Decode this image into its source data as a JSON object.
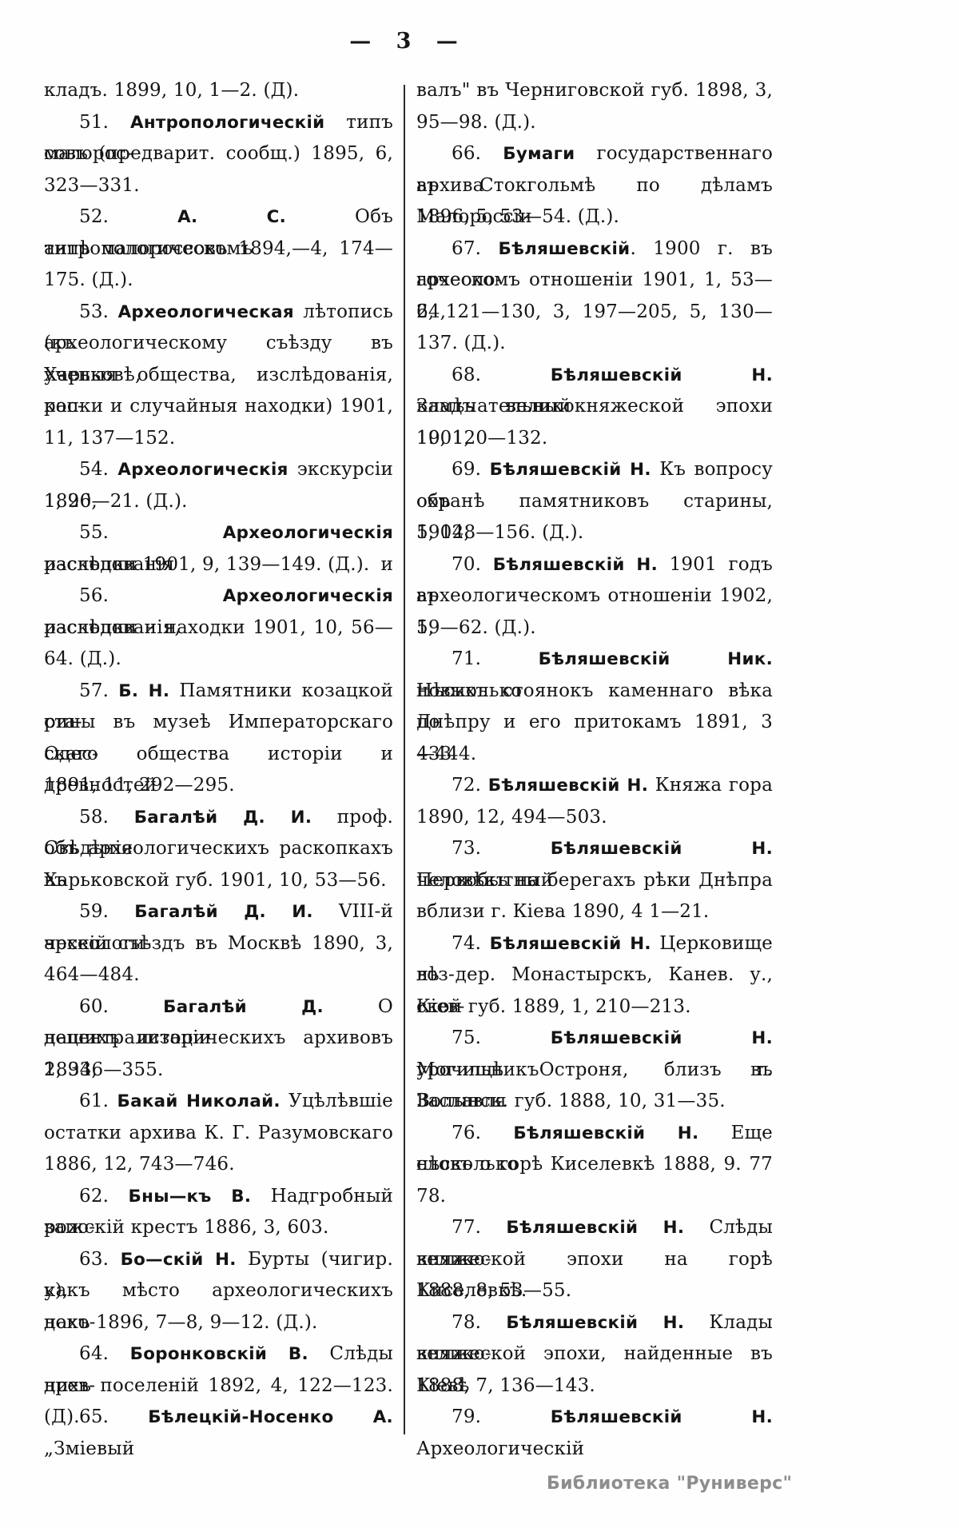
{
  "header": {
    "text": "— 3 —"
  },
  "watermark": {
    "text": "Библиотека \"Руниверс\""
  },
  "columns": {
    "left": [
      {
        "e": 1,
        "p": [
          {
            "t": "кладъ. 1899, 10, 1—2. (Д)."
          }
        ]
      },
      {
        "i": 1,
        "p": [
          {
            "t": "51. "
          },
          {
            "t": "Антропологическій",
            "b": 1
          },
          {
            "t": " типъ малорос-"
          }
        ]
      },
      {
        "p": [
          {
            "t": "совъ (предварит. сообщ.) 1895, 6,"
          }
        ]
      },
      {
        "e": 1,
        "p": [
          {
            "t": "323—331."
          }
        ]
      },
      {
        "i": 1,
        "p": [
          {
            "t": "52. "
          },
          {
            "t": "А. С.",
            "b": 1
          },
          {
            "t": " Объ антропологическомъ"
          }
        ]
      },
      {
        "p": [
          {
            "t": "типѣ малороссовъ 1894,—4, 174—"
          }
        ]
      },
      {
        "e": 1,
        "p": [
          {
            "t": "175. (Д.)."
          }
        ]
      },
      {
        "i": 1,
        "p": [
          {
            "t": "53. "
          },
          {
            "t": "Археологическая",
            "b": 1
          },
          {
            "t": " лѣтопись (къ"
          }
        ]
      },
      {
        "p": [
          {
            "t": "археологическому съѣзду въ Харьковѣ,"
          }
        ]
      },
      {
        "p": [
          {
            "t": "ученыя общества, изслѣдованія, рас-"
          }
        ]
      },
      {
        "p": [
          {
            "t": "копки и случайныя находки) 1901,"
          }
        ]
      },
      {
        "e": 1,
        "p": [
          {
            "t": "11, 137—152."
          }
        ]
      },
      {
        "i": 1,
        "p": [
          {
            "t": "54. "
          },
          {
            "t": "Археологическія",
            "b": 1
          },
          {
            "t": " экскурсіи 1896,"
          }
        ]
      },
      {
        "e": 1,
        "p": [
          {
            "t": "1, 20—21. (Д.)."
          }
        ]
      },
      {
        "i": 1,
        "p": [
          {
            "t": "55. "
          },
          {
            "t": "Археологическія",
            "b": 1
          },
          {
            "t": " изслѣдованія и"
          }
        ]
      },
      {
        "e": 1,
        "p": [
          {
            "t": "раскопки 1901, 9, 139—149. (Д.)."
          }
        ]
      },
      {
        "i": 1,
        "p": [
          {
            "t": "56. "
          },
          {
            "t": "Археологическія",
            "b": 1
          },
          {
            "t": " изслѣдованія,"
          }
        ]
      },
      {
        "p": [
          {
            "t": "раскопки и находки 1901, 10, 56—"
          }
        ]
      },
      {
        "e": 1,
        "p": [
          {
            "t": "64. (Д.)."
          }
        ]
      },
      {
        "i": 1,
        "p": [
          {
            "t": "57. "
          },
          {
            "t": "Б. Н.",
            "b": 1
          },
          {
            "t": " Памятники козацкой ста-"
          }
        ]
      },
      {
        "p": [
          {
            "t": "рины въ музеѣ Императорскаго Одес-"
          }
        ]
      },
      {
        "p": [
          {
            "t": "скаго общества исторіи и древностей"
          }
        ]
      },
      {
        "e": 1,
        "p": [
          {
            "t": "1891, 11, 292—295."
          }
        ]
      },
      {
        "i": 1,
        "p": [
          {
            "t": "58. "
          },
          {
            "t": "Багалѣй Д. И.",
            "b": 1
          },
          {
            "t": " проф. Свѣдѣнія"
          }
        ]
      },
      {
        "p": [
          {
            "t": "объ археологическихъ раскопкахъ въ"
          }
        ]
      },
      {
        "e": 1,
        "p": [
          {
            "t": "Харьковской губ. 1901, 10, 53—56."
          }
        ]
      },
      {
        "i": 1,
        "p": [
          {
            "t": "59. "
          },
          {
            "t": "Багалѣй Д. И.",
            "b": 1
          },
          {
            "t": " VIII-й археологи-"
          }
        ]
      },
      {
        "p": [
          {
            "t": "ческій съѣздъ въ Москвѣ 1890, 3,"
          }
        ]
      },
      {
        "e": 1,
        "p": [
          {
            "t": "464—484."
          }
        ]
      },
      {
        "i": 1,
        "p": [
          {
            "t": "60. "
          },
          {
            "t": "Багалѣй Д.",
            "b": 1
          },
          {
            "t": " О децентрализаціи"
          }
        ]
      },
      {
        "p": [
          {
            "t": "нашихъ историческихъ архивовъ 1893,"
          }
        ]
      },
      {
        "e": 1,
        "p": [
          {
            "t": "2, 346—355."
          }
        ]
      },
      {
        "i": 1,
        "p": [
          {
            "t": "61. "
          },
          {
            "t": "Бакай Николай.",
            "b": 1
          },
          {
            "t": " Уцѣлѣвшіе"
          }
        ]
      },
      {
        "p": [
          {
            "t": "остатки архива К. Г. Разумовскаго"
          }
        ]
      },
      {
        "e": 1,
        "p": [
          {
            "t": "1886, 12, 743—746."
          }
        ]
      },
      {
        "i": 1,
        "p": [
          {
            "t": "62. "
          },
          {
            "t": "Бны—къ В.",
            "b": 1
          },
          {
            "t": " Надгробный запо-"
          }
        ]
      },
      {
        "e": 1,
        "p": [
          {
            "t": "рожскій крестъ 1886, 3, 603."
          }
        ]
      },
      {
        "i": 1,
        "p": [
          {
            "t": "63. "
          },
          {
            "t": "Бо—скій Н.",
            "b": 1
          },
          {
            "t": " Бурты (чигир. у),"
          }
        ]
      },
      {
        "p": [
          {
            "t": "какъ мѣсто археологическихъ нахо-"
          }
        ]
      },
      {
        "e": 1,
        "p": [
          {
            "t": "докъ 1896, 7—8, 9—12. (Д.)."
          }
        ]
      },
      {
        "i": 1,
        "p": [
          {
            "t": "64. "
          },
          {
            "t": "Боронковскій В.",
            "b": 1
          },
          {
            "t": " Слѣды древ-"
          }
        ]
      },
      {
        "e": 1,
        "p": [
          {
            "t": "нихъ поселеній 1892, 4, 122—123. (Д)."
          }
        ]
      },
      {
        "i": 1,
        "p": [
          {
            "t": "65. "
          },
          {
            "t": "Бѣлецкій-Носенко А.",
            "b": 1
          },
          {
            "t": " „Зміевый"
          }
        ]
      }
    ],
    "right": [
      {
        "p": [
          {
            "t": "валъ\" въ Черниговской губ. 1898, 3,"
          }
        ]
      },
      {
        "e": 1,
        "p": [
          {
            "t": "95—98. (Д.)."
          }
        ]
      },
      {
        "i": 1,
        "p": [
          {
            "t": "66. "
          },
          {
            "t": "Бумаги",
            "b": 1
          },
          {
            "t": " государственнаго архива"
          }
        ]
      },
      {
        "p": [
          {
            "t": "въ Стокгольмѣ по дѣламъ Малороссіи"
          }
        ]
      },
      {
        "e": 1,
        "p": [
          {
            "t": "1896, 5, 53—54. (Д.)."
          }
        ]
      },
      {
        "i": 1,
        "p": [
          {
            "t": "67. "
          },
          {
            "t": "Бѣляшевскій",
            "b": 1
          },
          {
            "t": ". 1900 г. въ археоло-"
          }
        ]
      },
      {
        "p": [
          {
            "t": "гоческомъ отношеніи 1901, 1, 53—64,"
          }
        ]
      },
      {
        "p": [
          {
            "t": "2, 121—130, 3, 197—205, 5, 130—"
          }
        ]
      },
      {
        "e": 1,
        "p": [
          {
            "t": "137. (Д.)."
          }
        ]
      },
      {
        "i": 1,
        "p": [
          {
            "t": "68. "
          },
          {
            "t": "Бѣляшевскій Н.",
            "b": 1
          },
          {
            "t": " Замѣчательный"
          }
        ]
      },
      {
        "p": [
          {
            "t": "кладъ великокняжеской эпохи 1901,"
          }
        ]
      },
      {
        "e": 1,
        "p": [
          {
            "t": "10, 120—132."
          }
        ]
      },
      {
        "i": 1,
        "p": [
          {
            "t": "69. "
          },
          {
            "t": "Бѣляшевскій Н.",
            "b": 1
          },
          {
            "t": " Къ вопросу объ"
          }
        ]
      },
      {
        "p": [
          {
            "t": "охранѣ памятниковъ старины, 1902,"
          }
        ]
      },
      {
        "e": 1,
        "p": [
          {
            "t": "5, 148—156. (Д.)."
          }
        ]
      },
      {
        "i": 1,
        "p": [
          {
            "t": "70. "
          },
          {
            "t": "Бѣляшевскій Н.",
            "b": 1
          },
          {
            "t": " 1901 годъ въ"
          }
        ]
      },
      {
        "p": [
          {
            "t": "археологическомъ отношеніи 1902, 1,"
          }
        ]
      },
      {
        "e": 1,
        "p": [
          {
            "t": "59—62. (Д.)."
          }
        ]
      },
      {
        "i": 1,
        "p": [
          {
            "t": "71. "
          },
          {
            "t": "Бѣляшевскій Ник.",
            "b": 1
          },
          {
            "t": " Нѣсколько"
          }
        ]
      },
      {
        "p": [
          {
            "t": "новыхъ стоянокъ каменнаго вѣка по"
          }
        ]
      },
      {
        "p": [
          {
            "t": "Днѣпру и его притокамъ 1891, 3 433"
          }
        ]
      },
      {
        "e": 1,
        "p": [
          {
            "t": "—444."
          }
        ]
      },
      {
        "i": 1,
        "p": [
          {
            "t": "72. "
          },
          {
            "t": "Бѣляшевскій Н.",
            "b": 1
          },
          {
            "t": " Княжа гора"
          }
        ]
      },
      {
        "e": 1,
        "p": [
          {
            "t": "1890, 12, 494—503."
          }
        ]
      },
      {
        "i": 1,
        "p": [
          {
            "t": "73. "
          },
          {
            "t": "Бѣляшевскій Н.",
            "b": 1
          },
          {
            "t": " Первобытный"
          }
        ]
      },
      {
        "p": [
          {
            "t": "человѣкъ на берегахъ рѣки Днѣпра"
          }
        ]
      },
      {
        "e": 1,
        "p": [
          {
            "t": "вблизи г. Кіева 1890, 4 1—21."
          }
        ]
      },
      {
        "i": 1,
        "p": [
          {
            "t": "74. "
          },
          {
            "t": "Бѣляшевскій Н.",
            "b": 1
          },
          {
            "t": " Церковище воз-"
          }
        ]
      },
      {
        "p": [
          {
            "t": "лѣ дер. Монастырскъ, Канев. у., Кіев-"
          }
        ]
      },
      {
        "e": 1,
        "p": [
          {
            "t": "ской губ. 1889, 1, 210—213."
          }
        ]
      },
      {
        "i": 1,
        "p": [
          {
            "t": "75. "
          },
          {
            "t": "Бѣляшевскій Н.",
            "b": 1
          },
          {
            "t": " Могильникъ въ"
          }
        ]
      },
      {
        "p": [
          {
            "t": "урочищѣ Остроня, близъ г. Заславля"
          }
        ]
      },
      {
        "e": 1,
        "p": [
          {
            "t": "Волынск. губ. 1888, 10, 31—35."
          }
        ]
      },
      {
        "i": 1,
        "p": [
          {
            "t": "76. "
          },
          {
            "t": "Бѣляшевскій Н.",
            "b": 1
          },
          {
            "t": " Еще нѣсколько"
          }
        ]
      },
      {
        "p": [
          {
            "t": "словъ о горѣ Киселевкѣ 1888, 9. 77"
          }
        ]
      },
      {
        "e": 1,
        "p": [
          {
            "t": "78."
          }
        ]
      },
      {
        "i": 1,
        "p": [
          {
            "t": "77. "
          },
          {
            "t": "Бѣляшевскій Н.",
            "b": 1
          },
          {
            "t": " Слѣды велико-"
          }
        ]
      },
      {
        "p": [
          {
            "t": "княжеской эпохи на горѣ Киселевкѣ."
          }
        ]
      },
      {
        "e": 1,
        "p": [
          {
            "t": "1888, 8, 53—55."
          }
        ]
      },
      {
        "i": 1,
        "p": [
          {
            "t": "78. "
          },
          {
            "t": "Бѣляшевскій Н.",
            "b": 1
          },
          {
            "t": " Клады велико-"
          }
        ]
      },
      {
        "p": [
          {
            "t": "княжеской эпохи, найденные въ Кіевѣ"
          }
        ]
      },
      {
        "e": 1,
        "p": [
          {
            "t": "1888, 7, 136—143."
          }
        ]
      },
      {
        "i": 1,
        "p": [
          {
            "t": "79. "
          },
          {
            "t": "Бѣляшевскій Н.",
            "b": 1
          },
          {
            "t": " Археологическій"
          }
        ]
      }
    ]
  }
}
